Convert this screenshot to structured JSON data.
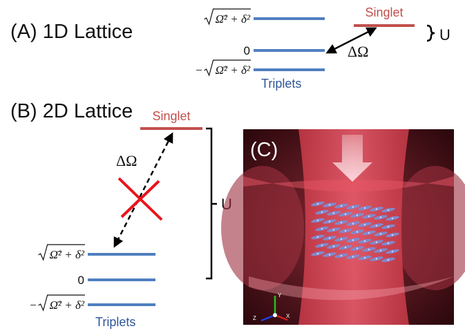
{
  "panel_a": {
    "title": "(A)  1D Lattice",
    "singlet": "Singlet",
    "triplets": "Triplets",
    "gap": "U",
    "coupling": "ΔΩ",
    "levels": [
      {
        "radicand": "Ω̄² + δ²"
      },
      {
        "label": "0"
      },
      {
        "sign": "−",
        "radicand": "Ω̄² + δ²"
      }
    ]
  },
  "panel_b": {
    "title": "(B)  2D Lattice",
    "singlet": "Singlet",
    "triplets": "Triplets",
    "gap": "U",
    "coupling": "ΔΩ",
    "levels": [
      {
        "radicand": "Ω̄² + δ²"
      },
      {
        "label": "0"
      },
      {
        "sign": "−",
        "radicand": "Ω̄² + δ²"
      }
    ]
  },
  "panel_c": {
    "title": "(C)",
    "axes": {
      "y": "Y",
      "z": "Z",
      "x": "X"
    }
  }
}
